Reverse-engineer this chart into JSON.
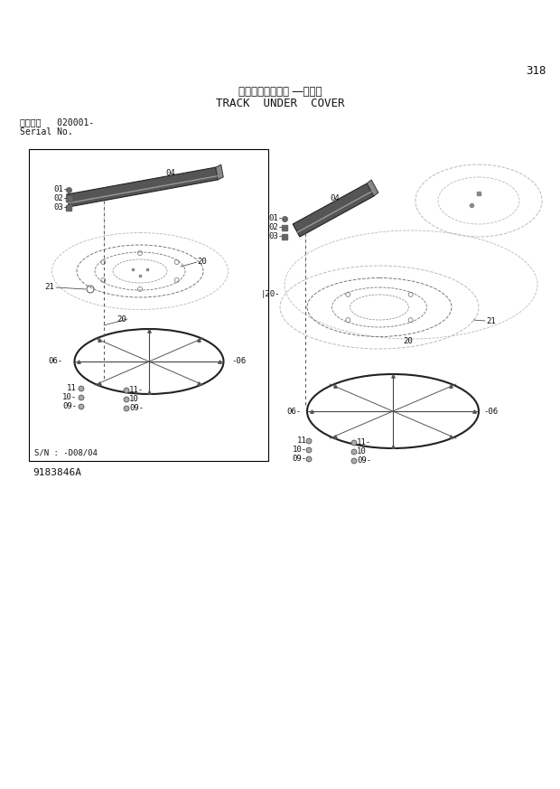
{
  "page_number": "318",
  "title_japanese": "トラックアンダー ―カバー",
  "title_english": "TRACK  UNDER  COVER",
  "serial_label": "適用号機   020001-",
  "serial_no": "Serial No.",
  "part_number": "9183846A",
  "sn_note": "S/N : -D08/04",
  "bg_color": "#ffffff",
  "box_color": "#000000",
  "line_color": "#333333",
  "text_color": "#111111",
  "gray": "#777777",
  "light_gray": "#bbbbbb"
}
